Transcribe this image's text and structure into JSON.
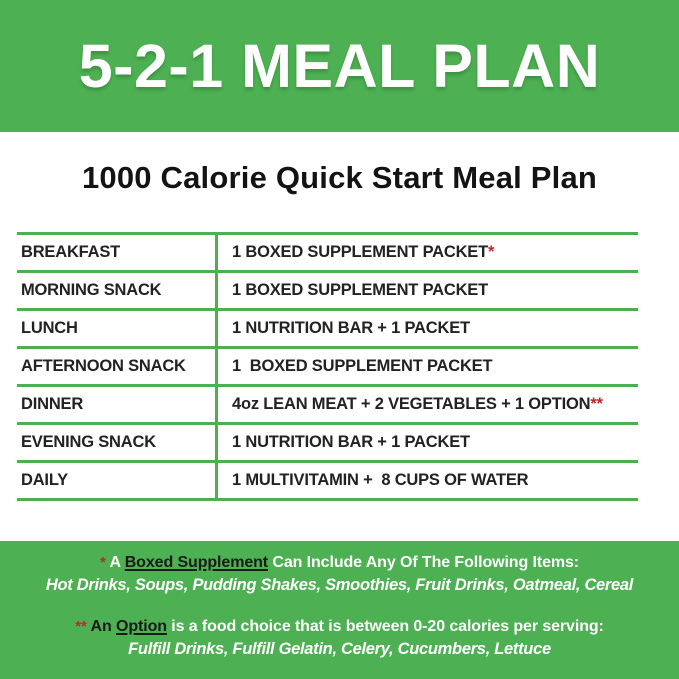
{
  "header": {
    "title": "5-2-1 MEAL PLAN"
  },
  "main": {
    "subtitle": "1000 Calorie Quick Start Meal Plan",
    "table": {
      "rows": [
        {
          "label": "BREAKFAST",
          "value": "1 BOXED SUPPLEMENT PACKET",
          "marker": "*"
        },
        {
          "label": "MORNING SNACK",
          "value": "1 BOXED SUPPLEMENT PACKET",
          "marker": ""
        },
        {
          "label": "LUNCH",
          "value": "1 NUTRITION BAR + 1 PACKET",
          "marker": ""
        },
        {
          "label": "AFTERNOON SNACK",
          "value": "1  BOXED SUPPLEMENT PACKET",
          "marker": ""
        },
        {
          "label": "DINNER",
          "value": "4oz LEAN MEAT + 2 VEGETABLES + 1 OPTION",
          "marker": "**"
        },
        {
          "label": "EVENING SNACK",
          "value": "1 NUTRITION BAR + 1 PACKET",
          "marker": ""
        },
        {
          "label": "DAILY",
          "value": "1 MULTIVITAMIN +  8 CUPS OF WATER",
          "marker": ""
        }
      ]
    }
  },
  "footer": {
    "note1": {
      "marker": "*",
      "lead": "A",
      "underlined": "Boxed Supplement",
      "rest": "Can Include Any Of The Following Items:",
      "items": "Hot Drinks, Soups, Pudding Shakes, Smoothies, Fruit Drinks, Oatmeal, Cereal"
    },
    "note2": {
      "marker": "**",
      "lead": "An",
      "underlined": "Option",
      "rest": "is a food choice that is between 0-20 calories per serving:",
      "items": "Fulfill Drinks, Fulfill Gelatin, Celery, Cucumbers, Lettuce"
    }
  },
  "colors": {
    "banner_green": "#4db052",
    "table_line_green": "#4caf50",
    "footnote_red": "#c0262c",
    "text_dark": "#222222",
    "text_white": "#ffffff"
  }
}
